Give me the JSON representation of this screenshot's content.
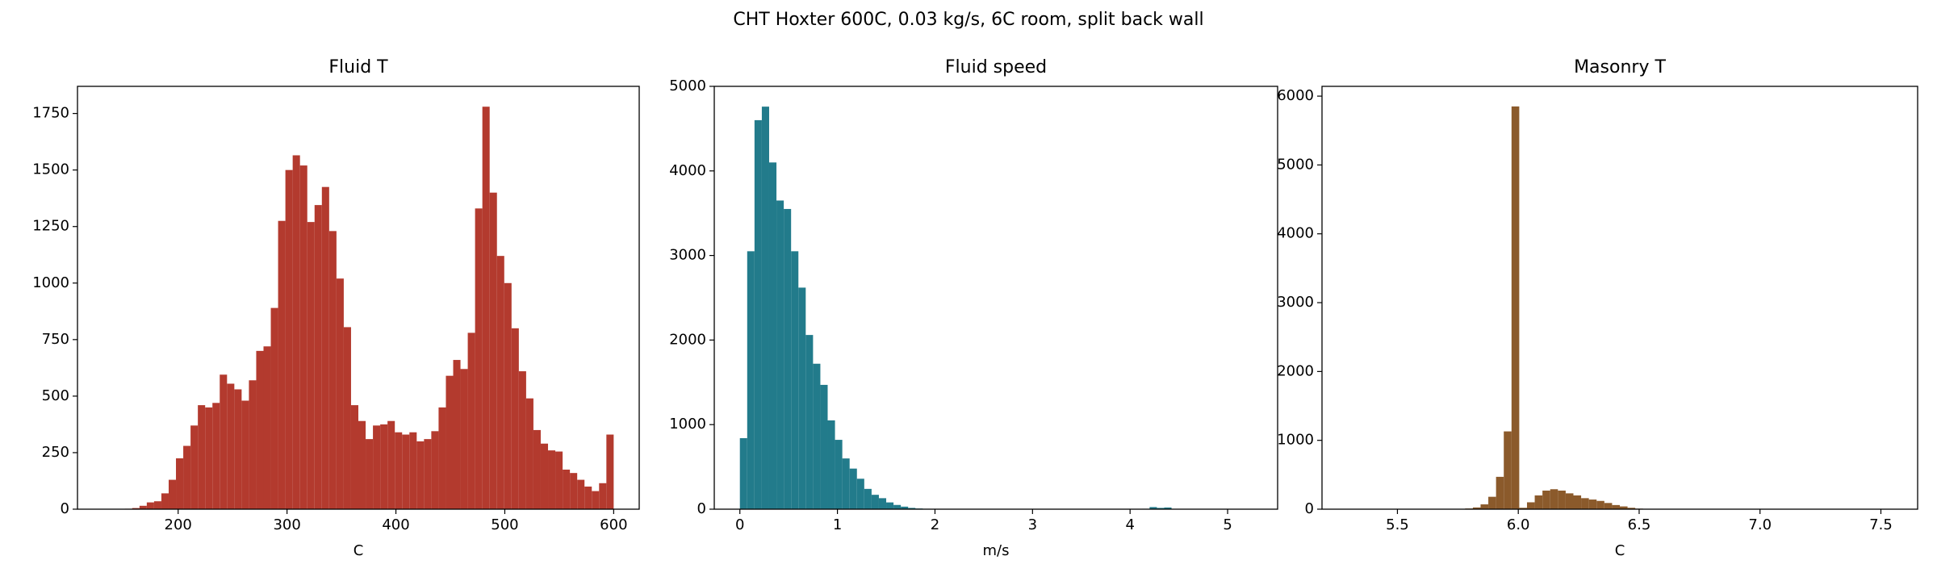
{
  "title": "CHT Hoxter 600C, 0.03 kg/s, 6C room, split back wall",
  "chart_data": [
    {
      "type": "histogram",
      "title": "Fluid T",
      "x_label": "C",
      "color": "#b33a2e",
      "bins": [
        131,
        137.7,
        144.4,
        151.1,
        157.8,
        164.5,
        171.2,
        177.9,
        184.6,
        191.3,
        198,
        204.7,
        211.4,
        218.1,
        224.8,
        231.5,
        238.2,
        244.9,
        251.6,
        258.3,
        265,
        271.7,
        278.4,
        285.1,
        291.8,
        298.5,
        305.2,
        311.9,
        318.6,
        325.3,
        332,
        338.7,
        345.4,
        352.1,
        358.8,
        365.5,
        372.2,
        378.9,
        385.6,
        392.3,
        399,
        405.7,
        412.4,
        419.1,
        425.8,
        432.5,
        439.2,
        445.9,
        452.6,
        459.3,
        466,
        472.7,
        479.4,
        486.1,
        492.8,
        499.5,
        506.2,
        512.9,
        519.6,
        526.3,
        533,
        539.7,
        546.4,
        553.1,
        559.8,
        566.5,
        573.2,
        579.9,
        586.6,
        593.3,
        600
      ],
      "counts": [
        0,
        0,
        0,
        2,
        5,
        15,
        30,
        35,
        70,
        130,
        225,
        280,
        370,
        460,
        450,
        470,
        595,
        555,
        530,
        480,
        570,
        700,
        720,
        890,
        1275,
        1500,
        1565,
        1520,
        1270,
        1345,
        1425,
        1230,
        1020,
        805,
        460,
        390,
        310,
        370,
        375,
        390,
        340,
        330,
        340,
        300,
        310,
        345,
        450,
        590,
        660,
        620,
        780,
        1330,
        1780,
        1400,
        1120,
        1000,
        800,
        610,
        490,
        350,
        290,
        260,
        255,
        175,
        160,
        130,
        100,
        80,
        115,
        330
      ],
      "xlim": [
        107.55,
        623.45
      ],
      "xticks": [
        200,
        300,
        400,
        500,
        600
      ],
      "ylim": [
        0,
        1870
      ],
      "yticks": [
        0,
        250,
        500,
        750,
        1000,
        1250,
        1500,
        1750
      ]
    },
    {
      "type": "histogram",
      "title": "Fluid speed",
      "x_label": "m/s",
      "color": "#227b8b",
      "bins": [
        0,
        0.075,
        0.15,
        0.225,
        0.3,
        0.375,
        0.45,
        0.525,
        0.6,
        0.675,
        0.75,
        0.825,
        0.9,
        0.975,
        1.05,
        1.125,
        1.2,
        1.275,
        1.35,
        1.425,
        1.5,
        1.575,
        1.65,
        1.725,
        1.8,
        1.875,
        1.95,
        2.025,
        2.1,
        2.175,
        2.25,
        2.325,
        2.4,
        2.475,
        2.55,
        2.625,
        2.7,
        2.775,
        2.85,
        2.925,
        3,
        3.075,
        3.15,
        3.225,
        3.3,
        3.375,
        3.45,
        3.525,
        3.6,
        3.675,
        3.75,
        3.825,
        3.9,
        3.975,
        4.05,
        4.125,
        4.2,
        4.275,
        4.35,
        4.425,
        4.5,
        4.575,
        4.65,
        4.725,
        4.8,
        4.875,
        4.95,
        5.025,
        5.1,
        5.175,
        5.25
      ],
      "counts": [
        840,
        3050,
        4600,
        4760,
        4100,
        3650,
        3550,
        3050,
        2620,
        2060,
        1720,
        1470,
        1050,
        820,
        600,
        480,
        360,
        240,
        170,
        130,
        80,
        50,
        30,
        15,
        8,
        5,
        3,
        2,
        1,
        1,
        1,
        0,
        0,
        0,
        0,
        0,
        0,
        0,
        0,
        0,
        2,
        1,
        0,
        0,
        0,
        0,
        0,
        0,
        0,
        0,
        0,
        0,
        0,
        0,
        2,
        5,
        25,
        15,
        20,
        3,
        0,
        0,
        0,
        0,
        0,
        0,
        0,
        0,
        0,
        2
      ],
      "xlim": [
        -0.2625,
        5.5125
      ],
      "xticks": [
        0,
        1,
        2,
        3,
        4,
        5
      ],
      "ylim": [
        0,
        5000
      ],
      "yticks": [
        0,
        1000,
        2000,
        3000,
        4000,
        5000
      ]
    },
    {
      "type": "histogram",
      "title": "Masonry T",
      "x_label": "C",
      "color": "#8b5a2b",
      "bins": [
        5.3,
        5.332,
        5.364,
        5.396,
        5.428,
        5.46,
        5.492,
        5.524,
        5.556,
        5.588,
        5.62,
        5.652,
        5.684,
        5.716,
        5.748,
        5.78,
        5.812,
        5.844,
        5.876,
        5.908,
        5.94,
        5.972,
        6.004,
        6.036,
        6.068,
        6.1,
        6.132,
        6.164,
        6.196,
        6.228,
        6.26,
        6.292,
        6.324,
        6.356,
        6.388,
        6.42,
        6.452,
        6.484,
        6.516,
        6.548,
        6.58,
        6.612,
        6.644,
        6.676,
        6.708,
        6.74,
        6.772,
        6.804,
        6.836,
        6.868,
        6.9,
        6.932,
        6.964,
        6.996,
        7.028,
        7.06,
        7.092,
        7.124,
        7.156,
        7.188,
        7.22,
        7.252,
        7.284,
        7.316,
        7.348,
        7.38,
        7.412,
        7.444,
        7.476,
        7.508,
        7.54
      ],
      "counts": [
        1,
        0,
        0,
        0,
        0,
        0,
        0,
        0,
        0,
        0,
        0,
        0,
        3,
        3,
        3,
        10,
        25,
        70,
        180,
        470,
        1130,
        5850,
        20,
        100,
        200,
        270,
        290,
        270,
        230,
        200,
        160,
        140,
        120,
        90,
        60,
        40,
        20,
        8,
        2,
        1,
        0,
        0,
        0,
        0,
        0,
        0,
        0,
        0,
        0,
        0,
        0,
        0,
        0,
        0,
        0,
        0,
        0,
        0,
        0,
        0,
        0,
        0,
        0,
        0,
        0,
        0,
        0,
        0,
        0,
        1
      ],
      "xlim": [
        5.188,
        7.652
      ],
      "xticks": [
        5.5,
        {
          "value": 6,
          "label": "6.0"
        },
        6.5,
        {
          "value": 7,
          "label": "7.0"
        },
        7.5
      ],
      "ylim": [
        0,
        6142
      ],
      "yticks": [
        0,
        1000,
        2000,
        3000,
        4000,
        5000,
        6000
      ]
    }
  ]
}
